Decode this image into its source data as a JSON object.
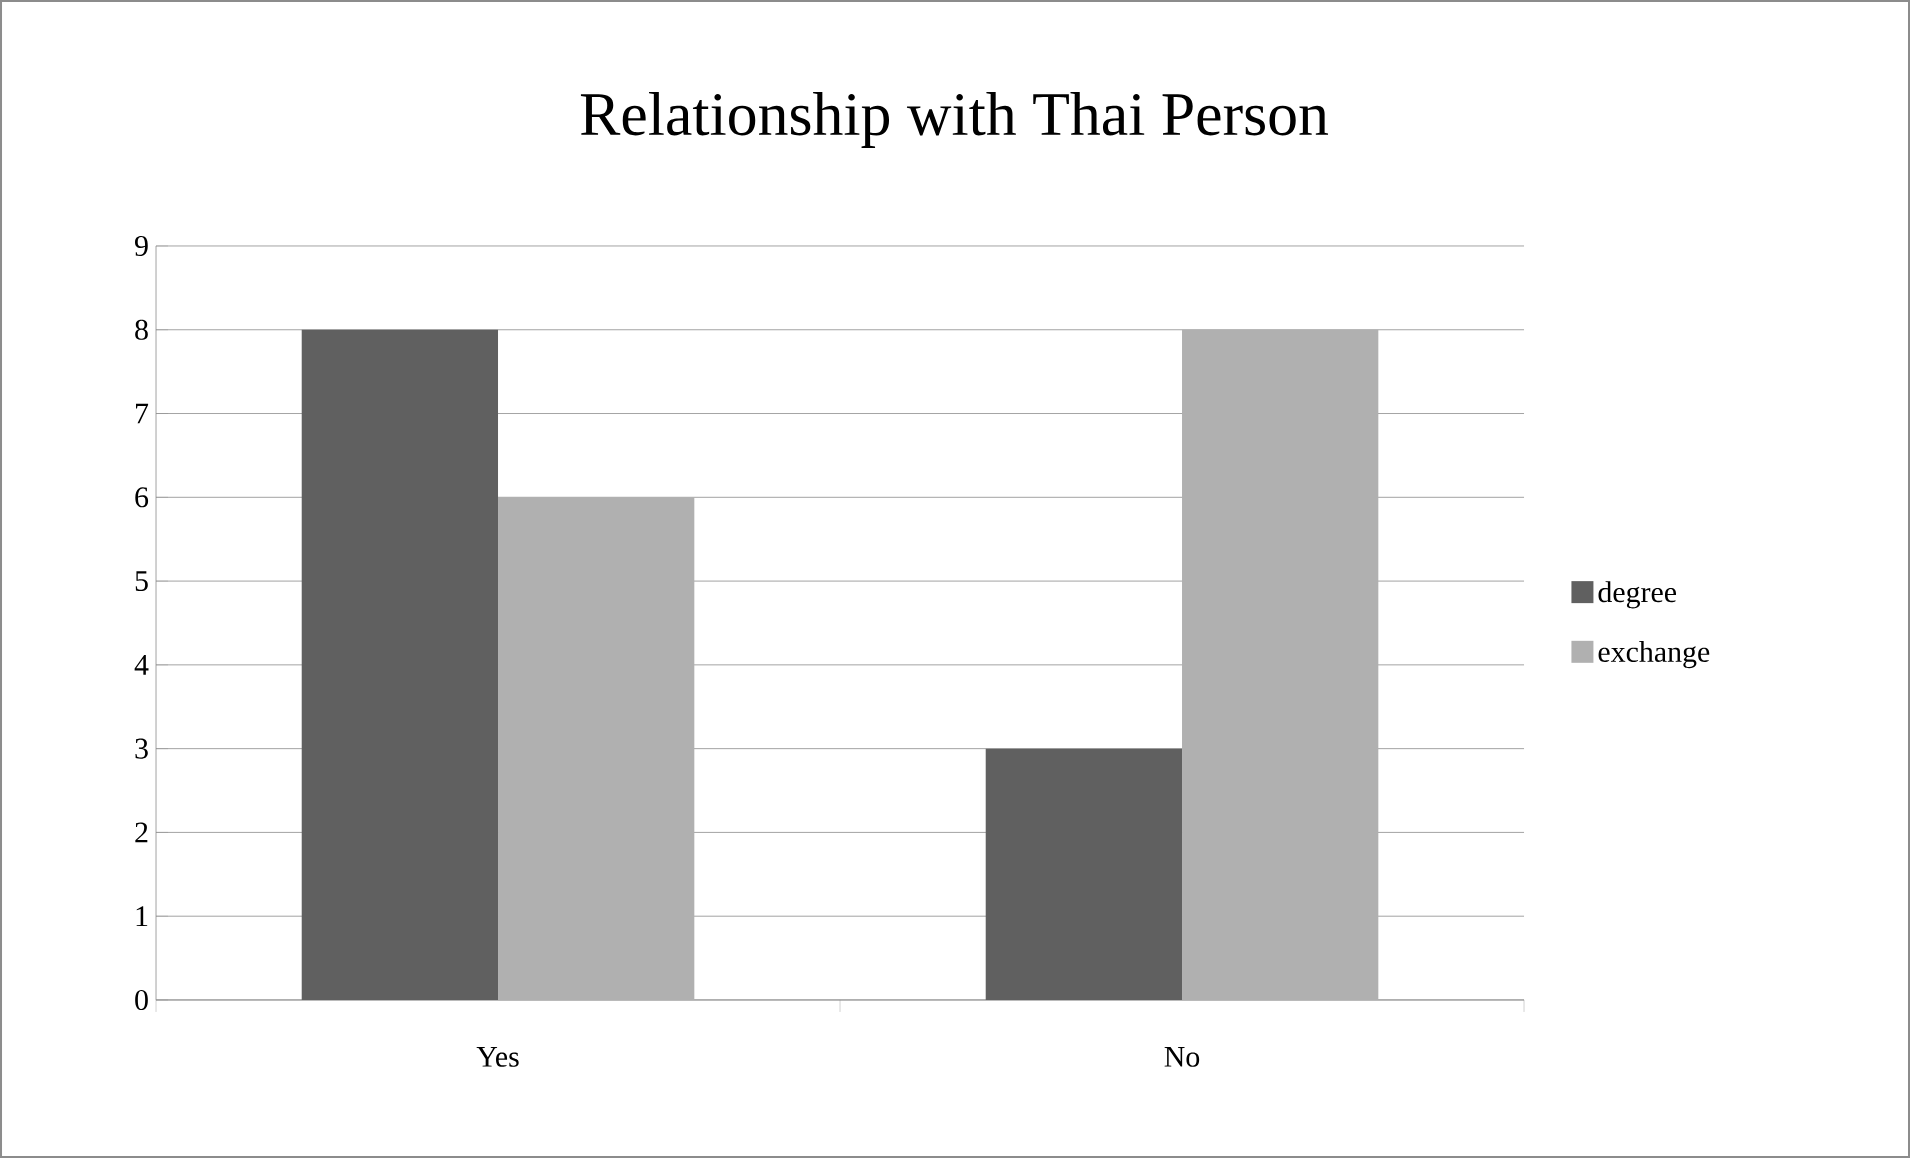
{
  "chart_data": {
    "type": "bar",
    "title": "Relationship with Thai Person",
    "categories": [
      "Yes",
      "No"
    ],
    "series": [
      {
        "name": "degree",
        "color": "#606060",
        "values": [
          8,
          3
        ]
      },
      {
        "name": "exchange",
        "color": "#b0b0b0",
        "values": [
          6,
          8
        ]
      }
    ],
    "ylim": [
      0,
      9
    ],
    "yticks": [
      0,
      1,
      2,
      3,
      4,
      5,
      6,
      7,
      8,
      9
    ],
    "grid": "y",
    "legend": "right"
  }
}
